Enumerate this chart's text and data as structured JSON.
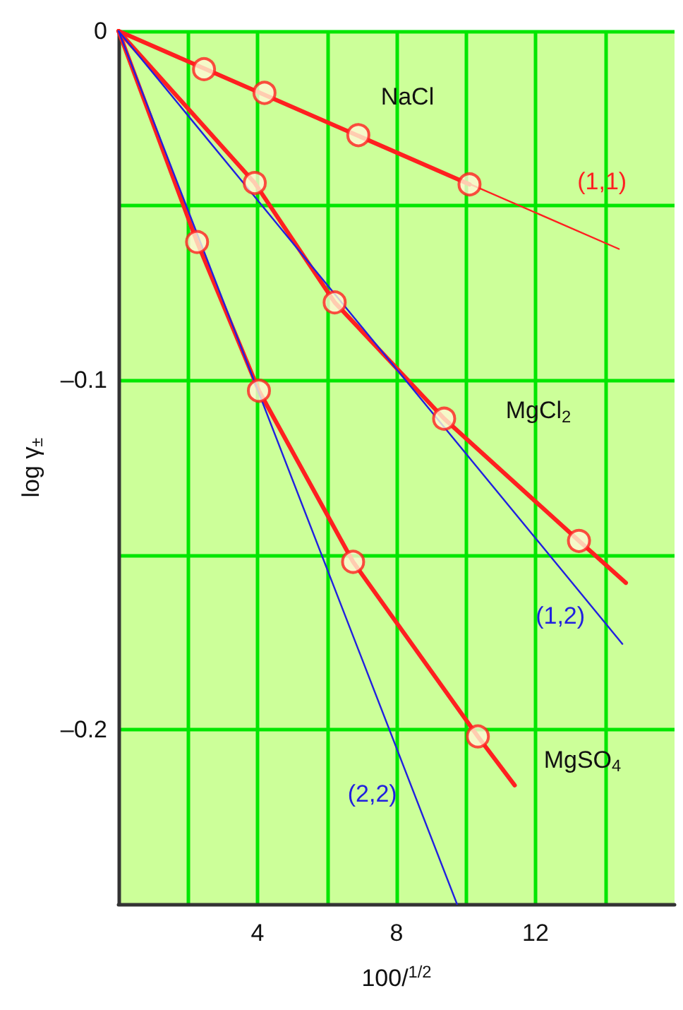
{
  "chart_data": {
    "type": "line",
    "xlabel": "100/$^{1/2}$",
    "ylabel": "log γ$_{±}$",
    "xlim": [
      0,
      16
    ],
    "xticks": [
      {
        "value": 2,
        "label": null
      },
      4,
      {
        "value": 6,
        "label": null
      },
      8,
      {
        "value": 10,
        "label": null
      },
      12,
      {
        "value": 14,
        "label": null
      }
    ],
    "ylim": [
      -0.25,
      0
    ],
    "yticks": [
      0,
      {
        "value": -0.05,
        "label": null
      },
      {
        "value": -0.1,
        "label": "–0.1"
      },
      {
        "value": -0.15,
        "label": null
      },
      {
        "value": -0.2,
        "label": "–0.2"
      }
    ],
    "grid": true,
    "legend": false,
    "series": [
      {
        "type": "line",
        "name": "NaCl",
        "color": "#ff2020",
        "x": [
          0,
          10.1
        ],
        "values": [
          0,
          -0.0439
        ]
      },
      {
        "type": "line",
        "name": "MgCl$_{2}$",
        "color": "#ff2020",
        "x": [
          0,
          3.92,
          6.22,
          9.37,
          13.25,
          14.6
        ],
        "values": [
          0,
          -0.0435,
          -0.0777,
          -0.111,
          -0.146,
          -0.158
        ]
      },
      {
        "type": "line",
        "name": "MgSO$_{4}$",
        "color": "#ff2020",
        "x": [
          0,
          2.26,
          4.04,
          6.75,
          10.34,
          11.4
        ],
        "values": [
          0,
          -0.0604,
          -0.103,
          -0.152,
          -0.202,
          -0.216
        ]
      },
      {
        "type": "line",
        "name": "(1,1)",
        "color": "#ff2020",
        "x": [
          0,
          14.4
        ],
        "values": [
          0,
          -0.0624
        ]
      },
      {
        "type": "line",
        "name": "(1,2)",
        "color": "#2020e0",
        "x": [
          0,
          14.5
        ],
        "values": [
          0,
          -0.1755
        ]
      },
      {
        "type": "line",
        "name": "(2,2)",
        "color": "#2020e0",
        "x": [
          0,
          9.74
        ],
        "values": [
          0,
          -0.25
        ]
      },
      {
        "type": "scatter",
        "marker": "circle",
        "color": "#ff2020",
        "x": [
          2.46,
          4.2,
          6.9,
          10.1
        ],
        "values": [
          -0.0109,
          -0.0177,
          -0.0298,
          -0.0439
        ]
      },
      {
        "type": "scatter",
        "marker": "circle",
        "color": "#ff2020",
        "x": [
          3.92,
          6.22,
          9.37,
          13.25
        ],
        "values": [
          -0.0435,
          -0.0777,
          -0.111,
          -0.146
        ]
      },
      {
        "type": "scatter",
        "marker": "circle",
        "color": "#ff2020",
        "x": [
          2.26,
          4.04,
          6.75,
          10.34
        ],
        "values": [
          -0.0604,
          -0.103,
          -0.152,
          -0.202
        ]
      }
    ]
  }
}
